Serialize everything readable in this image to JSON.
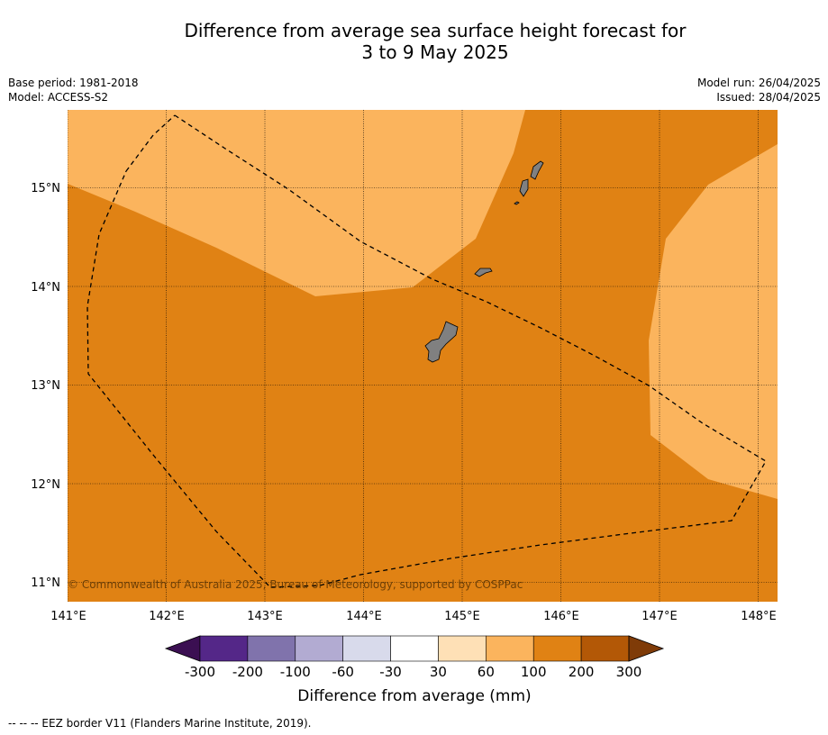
{
  "title_line1": "Difference from average sea surface height forecast for",
  "title_line2": "3 to 9 May 2025",
  "base_period": "Base period: 1981-2018",
  "model": "Model: ACCESS-S2",
  "model_run": "Model run: 26/04/2025",
  "issued": "Issued: 28/04/2025",
  "copyright": "© Commonwealth of Australia 2025, Bureau of Meteorology, supported by COSPPac",
  "lon_labels": [
    "141°E",
    "142°E",
    "143°E",
    "144°E",
    "145°E",
    "146°E",
    "147°E",
    "148°E"
  ],
  "lat_labels": [
    "15°N",
    "14°N",
    "13°N",
    "12°N",
    "11°N"
  ],
  "colorbar": {
    "label": "Difference from average (mm)",
    "ticks": [
      "-300",
      "-200",
      "-100",
      "-60",
      "-30",
      "30",
      "60",
      "100",
      "200",
      "300"
    ],
    "colors": [
      "#3b0f52",
      "#542788",
      "#8073ac",
      "#b2abd2",
      "#d8daeb",
      "#ffffff",
      "#fee0b6",
      "#fbb45d",
      "#e08214",
      "#b35806",
      "#7f3b08"
    ]
  },
  "fill_colors": {
    "band_60_100": "#fbb45d",
    "band_100_200": "#e08214",
    "land": "#808080"
  },
  "footer": "-- -- -- EEZ border V11 (Flanders Marine Institute, 2019)."
}
